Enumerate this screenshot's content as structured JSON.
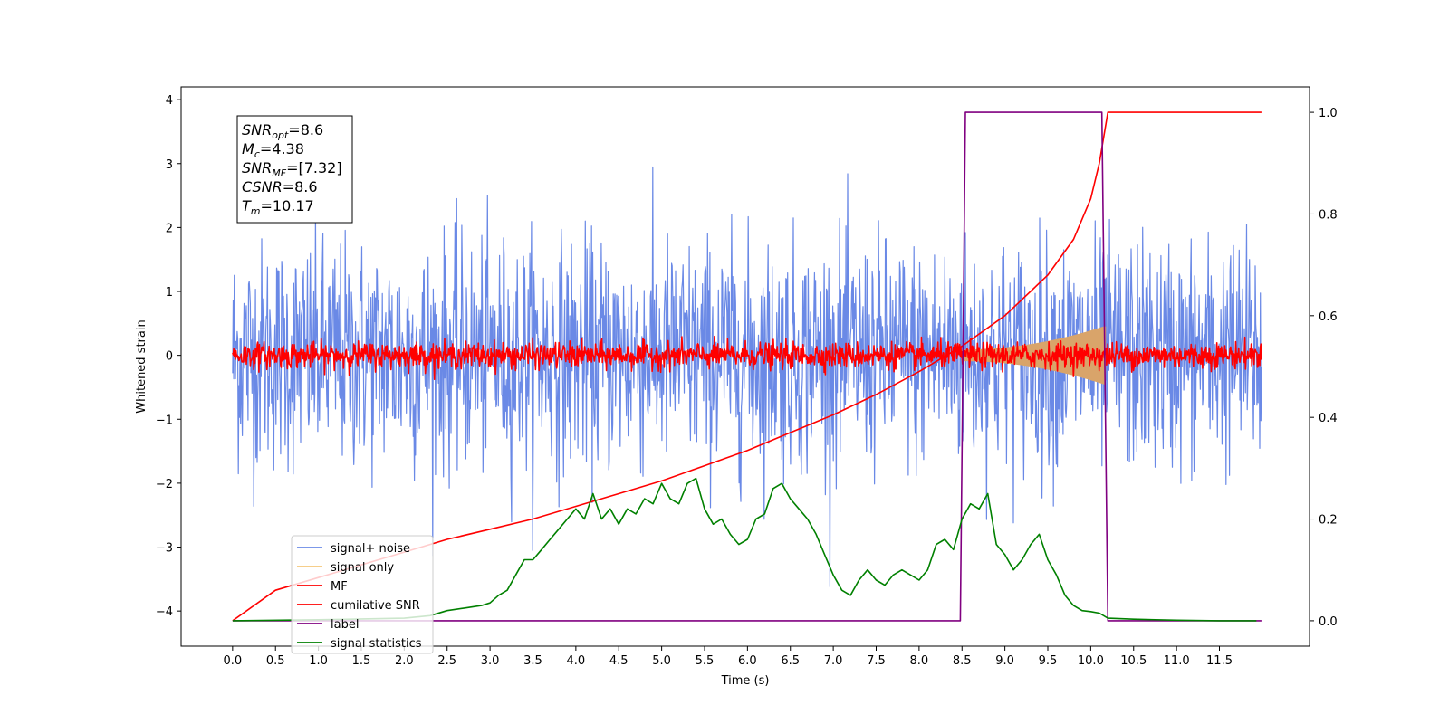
{
  "chart_data": {
    "type": "line",
    "xlabel": "Time (s)",
    "ylabel_left": "Whitened strain",
    "ylabel_right": "",
    "xlim": [
      -0.6,
      12.55
    ],
    "ylim_left": [
      -4.55,
      4.2
    ],
    "ylim_right": [
      -0.05,
      1.05
    ],
    "x_ticks": [
      "0.0",
      "0.5",
      "1.0",
      "1.5",
      "2.0",
      "2.5",
      "3.0",
      "3.5",
      "4.0",
      "4.5",
      "5.0",
      "5.5",
      "6.0",
      "6.5",
      "7.0",
      "7.5",
      "8.0",
      "8.5",
      "9.0",
      "9.5",
      "10.0",
      "10.5",
      "11.0",
      "11.5"
    ],
    "y_ticks_left": [
      "−4",
      "−3",
      "−2",
      "−1",
      "0",
      "1",
      "2",
      "3",
      "4"
    ],
    "y_ticks_right": [
      "0.0",
      "0.2",
      "0.4",
      "0.6",
      "0.8",
      "1.0"
    ],
    "info_box": [
      {
        "base": "SNR",
        "sub": "opt",
        "rest": "=8.6"
      },
      {
        "base": "M",
        "sub": "c",
        "rest": "=4.38"
      },
      {
        "base": "SNR",
        "sub": "MF",
        "rest": "=[7.32]"
      },
      {
        "base": "CSNR",
        "sub": "",
        "rest": "=8.6"
      },
      {
        "base": "T",
        "sub": "m",
        "rest": "=10.17"
      }
    ],
    "legend": {
      "placement": "lower-left",
      "entries": [
        {
          "label": "signal+ noise",
          "color": "#6a89e6"
        },
        {
          "label": "signal only",
          "color": "#f5c77a"
        },
        {
          "label": "MF",
          "color": "#ff0000"
        },
        {
          "label": "cumilative SNR",
          "color": "#ff0000"
        },
        {
          "label": "label",
          "color": "#800080"
        },
        {
          "label": "signal statistics",
          "color": "#008000"
        }
      ]
    },
    "series": [
      {
        "name": "signal+ noise",
        "axis": "left",
        "kind": "noise",
        "x_range": [
          0.0,
          11.99
        ],
        "std": 0.9,
        "color": "#6a89e6"
      },
      {
        "name": "signal only",
        "axis": "left",
        "kind": "chirp",
        "x_range": [
          8.5,
          10.17
        ],
        "amp_start": 0.08,
        "amp_end": 0.45,
        "color": "#d9a46a"
      },
      {
        "name": "MF",
        "axis": "left",
        "kind": "noise",
        "x_range": [
          0.0,
          11.99
        ],
        "std": 0.1,
        "color": "#ff0000"
      },
      {
        "name": "cumilative SNR",
        "axis": "right",
        "x": [
          0.0,
          0.5,
          1.0,
          1.5,
          2.0,
          2.5,
          3.0,
          3.5,
          4.0,
          4.5,
          5.0,
          5.5,
          6.0,
          6.5,
          7.0,
          7.5,
          8.0,
          8.5,
          9.0,
          9.5,
          9.8,
          10.0,
          10.1,
          10.17,
          10.2,
          11.0,
          11.99
        ],
        "y": [
          0.0,
          0.06,
          0.085,
          0.11,
          0.135,
          0.16,
          0.18,
          0.2,
          0.225,
          0.25,
          0.275,
          0.305,
          0.335,
          0.37,
          0.405,
          0.445,
          0.49,
          0.54,
          0.6,
          0.68,
          0.75,
          0.83,
          0.9,
          0.97,
          1.0,
          1.0,
          1.0
        ],
        "color": "#ff0000"
      },
      {
        "name": "label",
        "axis": "right",
        "x": [
          0.0,
          8.48,
          8.54,
          10.13,
          10.2,
          11.99
        ],
        "y": [
          0.0,
          0.0,
          1.0,
          1.0,
          0.0,
          0.0
        ],
        "color": "#800080"
      },
      {
        "name": "signal statistics",
        "axis": "right",
        "x": [
          0.0,
          1.0,
          2.0,
          2.3,
          2.5,
          2.7,
          2.9,
          3.0,
          3.1,
          3.2,
          3.3,
          3.4,
          3.5,
          3.6,
          3.7,
          3.8,
          3.9,
          4.0,
          4.1,
          4.2,
          4.3,
          4.4,
          4.5,
          4.6,
          4.7,
          4.8,
          4.9,
          5.0,
          5.1,
          5.2,
          5.3,
          5.4,
          5.5,
          5.6,
          5.7,
          5.8,
          5.9,
          6.0,
          6.1,
          6.2,
          6.3,
          6.4,
          6.5,
          6.6,
          6.7,
          6.8,
          6.9,
          7.0,
          7.1,
          7.2,
          7.3,
          7.4,
          7.5,
          7.6,
          7.7,
          7.8,
          7.9,
          8.0,
          8.1,
          8.2,
          8.3,
          8.4,
          8.5,
          8.6,
          8.7,
          8.8,
          8.9,
          9.0,
          9.1,
          9.2,
          9.3,
          9.4,
          9.5,
          9.6,
          9.7,
          9.8,
          9.9,
          10.0,
          10.1,
          10.2,
          10.5,
          11.0,
          11.5,
          11.93
        ],
        "y": [
          0.0,
          0.002,
          0.005,
          0.01,
          0.02,
          0.025,
          0.03,
          0.035,
          0.05,
          0.06,
          0.09,
          0.12,
          0.12,
          0.14,
          0.16,
          0.18,
          0.2,
          0.22,
          0.2,
          0.25,
          0.2,
          0.22,
          0.19,
          0.22,
          0.21,
          0.24,
          0.23,
          0.27,
          0.24,
          0.23,
          0.27,
          0.28,
          0.22,
          0.19,
          0.2,
          0.17,
          0.15,
          0.16,
          0.2,
          0.21,
          0.26,
          0.27,
          0.24,
          0.22,
          0.2,
          0.17,
          0.13,
          0.09,
          0.06,
          0.05,
          0.08,
          0.1,
          0.08,
          0.07,
          0.09,
          0.1,
          0.09,
          0.08,
          0.1,
          0.15,
          0.16,
          0.14,
          0.2,
          0.23,
          0.22,
          0.25,
          0.15,
          0.13,
          0.1,
          0.12,
          0.15,
          0.17,
          0.12,
          0.09,
          0.05,
          0.03,
          0.02,
          0.018,
          0.015,
          0.005,
          0.003,
          0.001,
          0.0,
          0.0
        ],
        "color": "#008000"
      }
    ]
  }
}
